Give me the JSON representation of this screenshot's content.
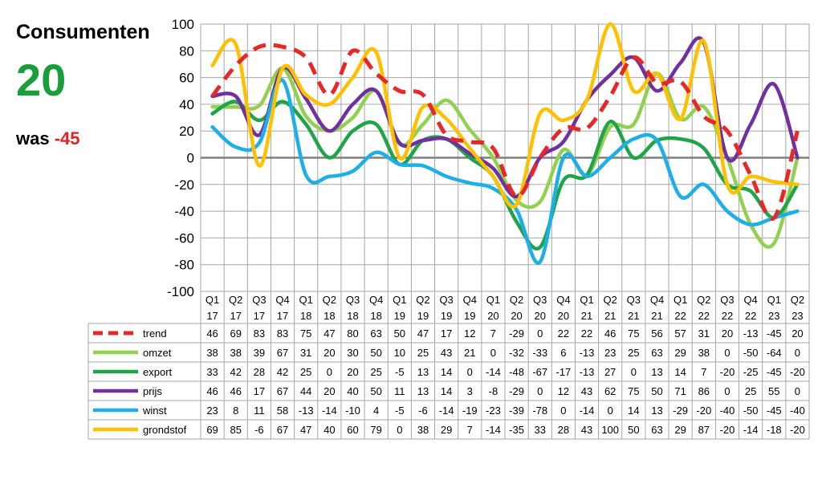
{
  "kpi": {
    "title": "Consumenten",
    "value": "20",
    "prev_label": "was",
    "prev_value": "-45"
  },
  "chart_data": {
    "type": "line",
    "categories": [
      [
        "Q1",
        "17"
      ],
      [
        "Q2",
        "17"
      ],
      [
        "Q3",
        "17"
      ],
      [
        "Q4",
        "17"
      ],
      [
        "Q1",
        "18"
      ],
      [
        "Q2",
        "18"
      ],
      [
        "Q3",
        "18"
      ],
      [
        "Q4",
        "18"
      ],
      [
        "Q1",
        "19"
      ],
      [
        "Q2",
        "19"
      ],
      [
        "Q3",
        "19"
      ],
      [
        "Q4",
        "19"
      ],
      [
        "Q1",
        "20"
      ],
      [
        "Q2",
        "20"
      ],
      [
        "Q3",
        "20"
      ],
      [
        "Q4",
        "20"
      ],
      [
        "Q1",
        "21"
      ],
      [
        "Q2",
        "21"
      ],
      [
        "Q3",
        "21"
      ],
      [
        "Q4",
        "21"
      ],
      [
        "Q1",
        "22"
      ],
      [
        "Q2",
        "22"
      ],
      [
        "Q3",
        "22"
      ],
      [
        "Q4",
        "22"
      ],
      [
        "Q1",
        "23"
      ],
      [
        "Q2",
        "23"
      ]
    ],
    "ylim": [
      -100,
      100
    ],
    "yticks": [
      100,
      80,
      60,
      40,
      20,
      0,
      -20,
      -40,
      -60,
      -80,
      -100
    ],
    "grid": true,
    "legend": "table-below",
    "series": [
      {
        "name": "trend",
        "color": "#e82828",
        "dashed": true,
        "values": [
          46,
          69,
          83,
          83,
          75,
          47,
          80,
          63,
          50,
          47,
          17,
          12,
          7,
          -29,
          0,
          22,
          22,
          46,
          75,
          56,
          57,
          31,
          20,
          -13,
          -45,
          20
        ]
      },
      {
        "name": "omzet",
        "color": "#92d050",
        "dashed": false,
        "values": [
          38,
          38,
          39,
          67,
          31,
          20,
          30,
          50,
          10,
          25,
          43,
          21,
          0,
          -32,
          -33,
          6,
          -13,
          23,
          25,
          63,
          29,
          38,
          0,
          -50,
          -64,
          0
        ]
      },
      {
        "name": "export",
        "color": "#1fa547",
        "dashed": false,
        "values": [
          33,
          42,
          28,
          42,
          25,
          0,
          20,
          25,
          -5,
          13,
          14,
          0,
          -14,
          -48,
          -67,
          -17,
          -13,
          27,
          0,
          13,
          14,
          7,
          -20,
          -25,
          -45,
          -20
        ]
      },
      {
        "name": "prijs",
        "color": "#7030a0",
        "dashed": false,
        "values": [
          46,
          46,
          17,
          67,
          44,
          20,
          40,
          50,
          11,
          13,
          14,
          3,
          -8,
          -29,
          0,
          12,
          43,
          62,
          75,
          50,
          71,
          86,
          0,
          25,
          55,
          0
        ]
      },
      {
        "name": "winst",
        "color": "#1eaee8",
        "dashed": false,
        "values": [
          23,
          8,
          11,
          58,
          -13,
          -14,
          -10,
          4,
          -5,
          -6,
          -14,
          -19,
          -23,
          -39,
          -78,
          0,
          -14,
          0,
          14,
          13,
          -29,
          -20,
          -40,
          -50,
          -45,
          -40
        ]
      },
      {
        "name": "grondstof",
        "color": "#ffc000",
        "dashed": false,
        "values": [
          69,
          85,
          -6,
          67,
          47,
          40,
          60,
          79,
          0,
          38,
          29,
          7,
          -14,
          -35,
          33,
          28,
          43,
          100,
          50,
          63,
          29,
          87,
          -20,
          -14,
          -18,
          -20
        ]
      }
    ]
  }
}
